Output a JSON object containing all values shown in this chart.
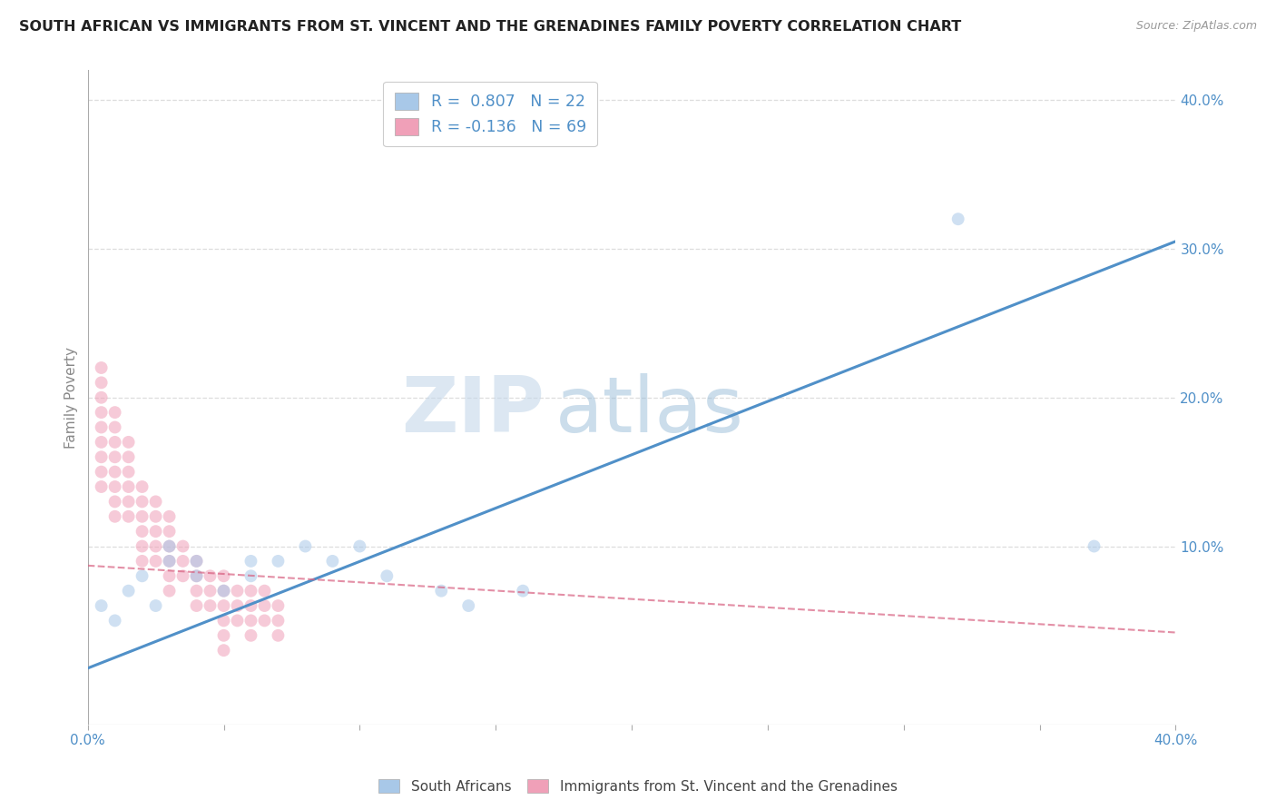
{
  "title": "SOUTH AFRICAN VS IMMIGRANTS FROM ST. VINCENT AND THE GRENADINES FAMILY POVERTY CORRELATION CHART",
  "source": "Source: ZipAtlas.com",
  "ylabel": "Family Poverty",
  "xlim": [
    0,
    0.4
  ],
  "ylim": [
    -0.02,
    0.42
  ],
  "yticks": [
    0.0,
    0.1,
    0.2,
    0.3,
    0.4
  ],
  "ytick_right_labels": [
    "",
    "10.0%",
    "20.0%",
    "30.0%",
    "40.0%"
  ],
  "xtick_positions": [
    0.0,
    0.05,
    0.1,
    0.15,
    0.2,
    0.25,
    0.3,
    0.35,
    0.4
  ],
  "blue_R": 0.807,
  "blue_N": 22,
  "pink_R": -0.136,
  "pink_N": 69,
  "blue_color": "#a8c8e8",
  "pink_color": "#f0a0b8",
  "blue_line_color": "#5090c8",
  "pink_line_color": "#d86080",
  "watermark_zip": "ZIP",
  "watermark_atlas": "atlas",
  "legend_blue_label": "R =  0.807   N = 22",
  "legend_pink_label": "R = -0.136   N = 69",
  "blue_scatter_x": [
    0.005,
    0.01,
    0.015,
    0.02,
    0.025,
    0.03,
    0.03,
    0.04,
    0.04,
    0.05,
    0.06,
    0.06,
    0.07,
    0.08,
    0.09,
    0.1,
    0.11,
    0.13,
    0.14,
    0.16,
    0.32,
    0.37
  ],
  "blue_scatter_y": [
    0.06,
    0.05,
    0.07,
    0.08,
    0.06,
    0.09,
    0.1,
    0.08,
    0.09,
    0.07,
    0.08,
    0.09,
    0.09,
    0.1,
    0.09,
    0.1,
    0.08,
    0.07,
    0.06,
    0.07,
    0.32,
    0.1
  ],
  "pink_scatter_x": [
    0.005,
    0.005,
    0.005,
    0.005,
    0.005,
    0.005,
    0.005,
    0.005,
    0.005,
    0.01,
    0.01,
    0.01,
    0.01,
    0.01,
    0.01,
    0.01,
    0.01,
    0.015,
    0.015,
    0.015,
    0.015,
    0.015,
    0.015,
    0.02,
    0.02,
    0.02,
    0.02,
    0.02,
    0.02,
    0.025,
    0.025,
    0.025,
    0.025,
    0.025,
    0.03,
    0.03,
    0.03,
    0.03,
    0.03,
    0.03,
    0.035,
    0.035,
    0.035,
    0.04,
    0.04,
    0.04,
    0.04,
    0.045,
    0.045,
    0.045,
    0.05,
    0.05,
    0.05,
    0.05,
    0.05,
    0.05,
    0.055,
    0.055,
    0.055,
    0.06,
    0.06,
    0.06,
    0.06,
    0.065,
    0.065,
    0.065,
    0.07,
    0.07,
    0.07
  ],
  "pink_scatter_y": [
    0.19,
    0.21,
    0.17,
    0.22,
    0.18,
    0.15,
    0.16,
    0.14,
    0.2,
    0.18,
    0.19,
    0.17,
    0.16,
    0.15,
    0.14,
    0.13,
    0.12,
    0.17,
    0.16,
    0.15,
    0.14,
    0.13,
    0.12,
    0.14,
    0.13,
    0.12,
    0.11,
    0.1,
    0.09,
    0.13,
    0.12,
    0.11,
    0.1,
    0.09,
    0.12,
    0.11,
    0.1,
    0.09,
    0.08,
    0.07,
    0.1,
    0.09,
    0.08,
    0.09,
    0.08,
    0.07,
    0.06,
    0.08,
    0.07,
    0.06,
    0.08,
    0.07,
    0.06,
    0.05,
    0.04,
    0.03,
    0.07,
    0.06,
    0.05,
    0.07,
    0.06,
    0.05,
    0.04,
    0.07,
    0.06,
    0.05,
    0.06,
    0.05,
    0.04
  ],
  "background_color": "#ffffff",
  "grid_color": "#dddddd",
  "title_fontsize": 11.5,
  "axis_label_fontsize": 11,
  "tick_fontsize": 11,
  "scatter_size": 100,
  "scatter_alpha": 0.55,
  "blue_line_x": [
    0.0,
    0.4
  ],
  "blue_line_y": [
    0.018,
    0.305
  ],
  "pink_line_x": [
    0.0,
    0.4
  ],
  "pink_line_y": [
    0.087,
    0.042
  ]
}
